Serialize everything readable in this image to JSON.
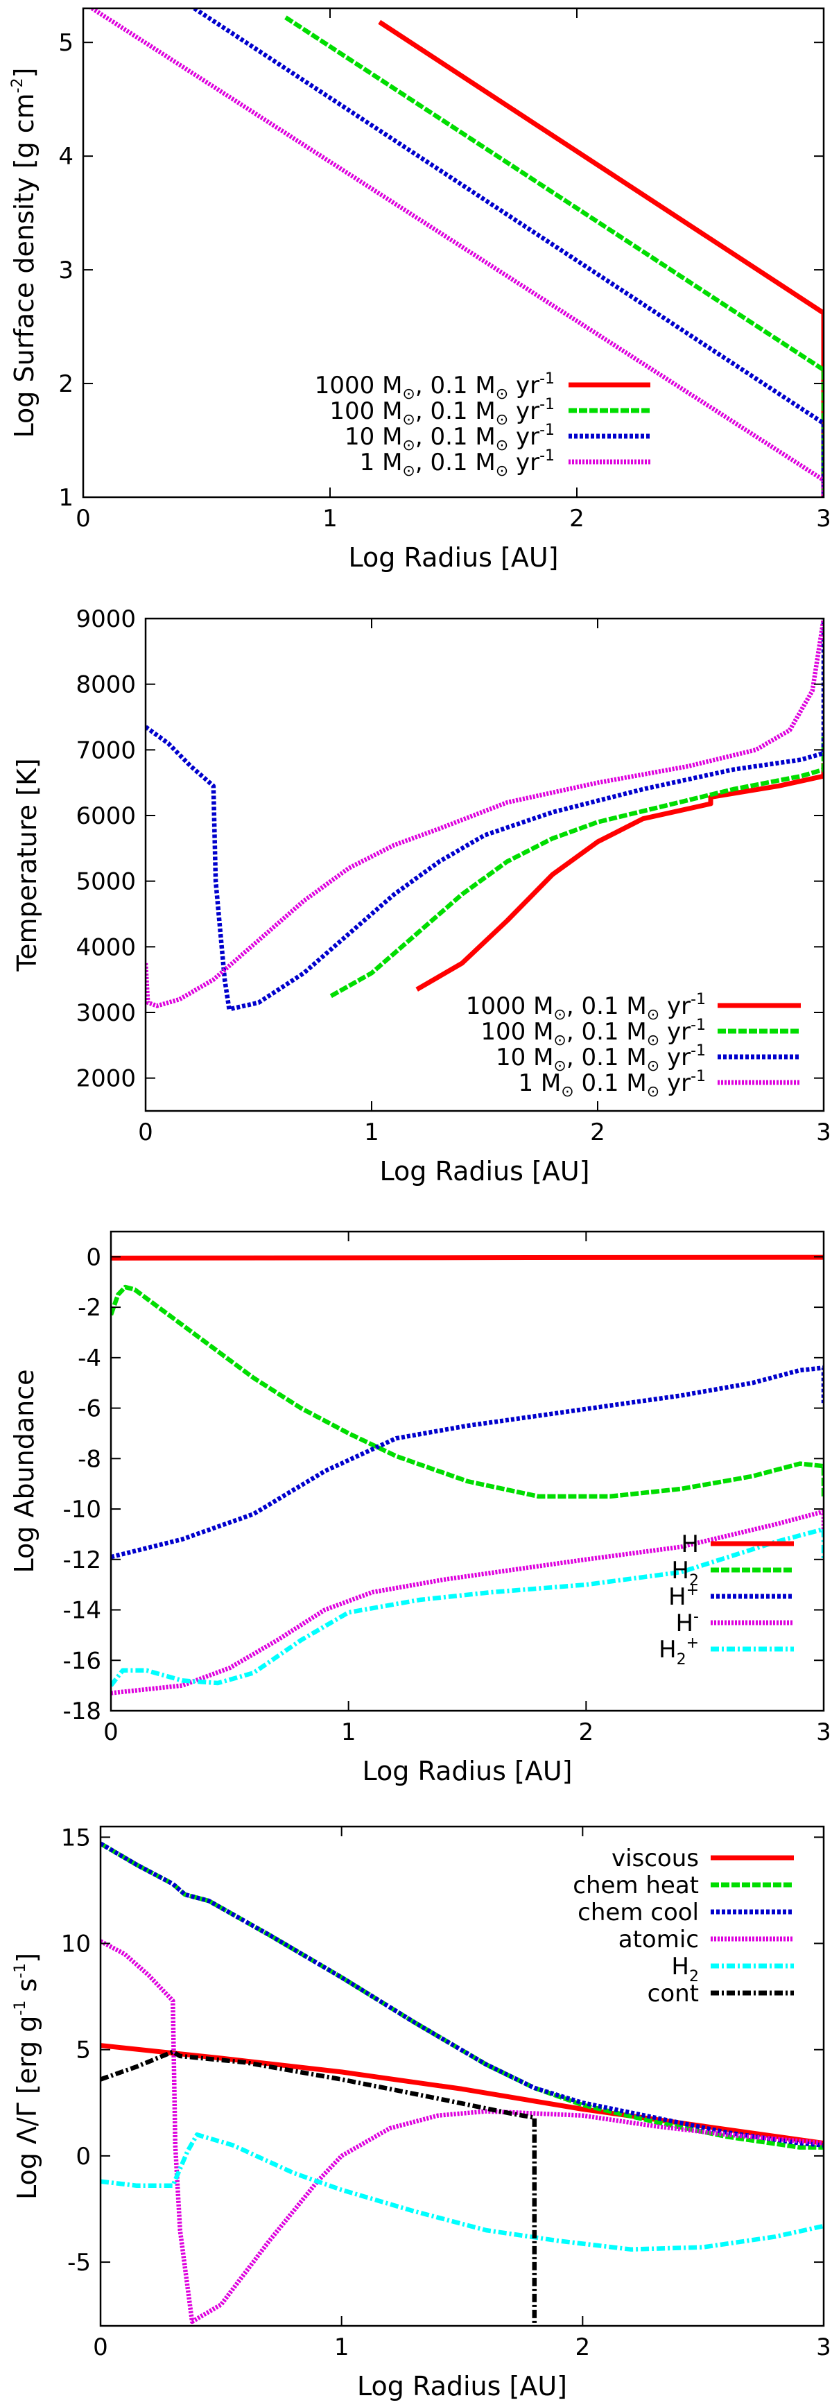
{
  "chart_data": [
    {
      "type": "line",
      "xlabel": "Log Radius [AU]",
      "ylabel": "Log Surface density [g cm⁻²]",
      "ylabel_parts": {
        "main": "Log Surface density [g cm",
        "sup": "-2",
        "tail": "]"
      },
      "xlim": [
        0,
        3
      ],
      "ylim": [
        1,
        5.3
      ],
      "xticks": [
        0,
        1,
        2,
        3
      ],
      "yticks": [
        1,
        2,
        3,
        4,
        5
      ],
      "legend_position": "bottom-left",
      "series": [
        {
          "name": "1000 M⊙, 0.1 M⊙ yr⁻¹",
          "label": {
            "m": "1000",
            "sep": ",",
            "rate": "0.1"
          },
          "color": "#ff0000",
          "dash": "solid",
          "x": [
            1.2,
            3.0,
            3.0
          ],
          "y": [
            5.18,
            2.62,
            1.0
          ]
        },
        {
          "name": "100 M⊙, 0.1 M⊙ yr⁻¹",
          "label": {
            "m": "100",
            "sep": ",",
            "rate": "0.1"
          },
          "color": "#00dd00",
          "dash": "dash",
          "x": [
            0.82,
            3.0,
            3.0
          ],
          "y": [
            5.22,
            2.12,
            1.0
          ]
        },
        {
          "name": "10 M⊙, 0.1 M⊙ yr⁻¹",
          "label": {
            "m": "10",
            "sep": ",",
            "rate": "0.1"
          },
          "color": "#0000cc",
          "dash": "dot",
          "x": [
            0.45,
            3.0,
            3.0
          ],
          "y": [
            5.3,
            1.65,
            1.0
          ]
        },
        {
          "name": "1 M⊙, 0.1 M⊙ yr⁻¹",
          "label": {
            "m": "1",
            "sep": ",",
            "rate": "0.1"
          },
          "color": "#dd00dd",
          "dash": "dense",
          "x": [
            0.0,
            3.0,
            3.0
          ],
          "y": [
            5.35,
            1.15,
            1.0
          ]
        }
      ]
    },
    {
      "type": "line",
      "xlabel": "Log Radius [AU]",
      "ylabel": "Temperature [K]",
      "xlim": [
        0,
        3
      ],
      "ylim": [
        1500,
        9000
      ],
      "xticks": [
        0,
        1,
        2,
        3
      ],
      "yticks": [
        2000,
        3000,
        4000,
        5000,
        6000,
        7000,
        8000,
        9000
      ],
      "legend_position": "bottom-right",
      "series": [
        {
          "name": "1000 M⊙, 0.1 M⊙ yr⁻¹",
          "label": {
            "m": "1000",
            "sep": ",",
            "rate": "0.1"
          },
          "color": "#ff0000",
          "dash": "solid",
          "x": [
            1.2,
            1.4,
            1.6,
            1.8,
            2.0,
            2.2,
            2.5,
            2.5,
            2.8,
            3.0,
            3.0
          ],
          "y": [
            3350,
            3750,
            4400,
            5100,
            5600,
            5950,
            6180,
            6280,
            6450,
            6600,
            6800
          ]
        },
        {
          "name": "100 M⊙, 0.1 M⊙ yr⁻¹",
          "label": {
            "m": "100",
            "sep": ",",
            "rate": "0.1"
          },
          "color": "#00dd00",
          "dash": "dash",
          "x": [
            0.82,
            1.0,
            1.2,
            1.4,
            1.6,
            1.8,
            2.0,
            2.3,
            2.6,
            2.9,
            3.0,
            3.0
          ],
          "y": [
            3250,
            3600,
            4200,
            4800,
            5300,
            5650,
            5900,
            6150,
            6400,
            6600,
            6700,
            7200
          ]
        },
        {
          "name": "10 M⊙, 0.1 M⊙ yr⁻¹",
          "label": {
            "m": "10",
            "sep": ",",
            "rate": "0.1"
          },
          "color": "#0000cc",
          "dash": "dot",
          "x": [
            0.0,
            0.1,
            0.2,
            0.3,
            0.31,
            0.35,
            0.37,
            0.5,
            0.7,
            0.9,
            1.1,
            1.3,
            1.5,
            1.8,
            2.2,
            2.6,
            2.9,
            3.0,
            3.0
          ],
          "y": [
            7350,
            7100,
            6750,
            6450,
            5000,
            3500,
            3050,
            3150,
            3600,
            4200,
            4800,
            5300,
            5700,
            6050,
            6400,
            6700,
            6850,
            6950,
            9000
          ]
        },
        {
          "name": "1 M⊙, 0.1 M⊙ yr⁻¹",
          "label": {
            "m": "1",
            "sep": "",
            "rate": "0.1"
          },
          "color": "#dd00dd",
          "dash": "dense",
          "x": [
            0.0,
            0.01,
            0.05,
            0.15,
            0.3,
            0.5,
            0.7,
            0.9,
            1.1,
            1.3,
            1.6,
            2.0,
            2.4,
            2.7,
            2.85,
            2.95,
            3.0
          ],
          "y": [
            3750,
            3150,
            3100,
            3200,
            3500,
            4100,
            4700,
            5200,
            5550,
            5800,
            6200,
            6500,
            6750,
            7000,
            7300,
            7900,
            9000
          ]
        }
      ]
    },
    {
      "type": "line",
      "xlabel": "Log Radius [AU]",
      "ylabel": "Log Abundance",
      "xlim": [
        0,
        3
      ],
      "ylim": [
        -18,
        1
      ],
      "xticks": [
        0,
        1,
        2,
        3
      ],
      "yticks": [
        0,
        -2,
        -4,
        -6,
        -8,
        -10,
        -12,
        -14,
        -16,
        -18
      ],
      "legend_position": "bottom-right",
      "series": [
        {
          "name": "H",
          "label": {
            "base": "H",
            "sub": "",
            "sup": ""
          },
          "color": "#ff0000",
          "dash": "solid",
          "x": [
            0.0,
            3.0
          ],
          "y": [
            -0.05,
            -0.02
          ]
        },
        {
          "name": "H₂",
          "label": {
            "base": "H",
            "sub": "2",
            "sup": ""
          },
          "color": "#00dd00",
          "dash": "dash",
          "x": [
            0.0,
            0.03,
            0.06,
            0.1,
            0.2,
            0.4,
            0.6,
            0.8,
            1.0,
            1.2,
            1.5,
            1.8,
            2.1,
            2.4,
            2.7,
            2.9,
            3.0,
            3.0
          ],
          "y": [
            -2.3,
            -1.5,
            -1.2,
            -1.3,
            -2.0,
            -3.4,
            -4.8,
            -6.0,
            -7.0,
            -7.9,
            -8.9,
            -9.5,
            -9.5,
            -9.2,
            -8.7,
            -8.2,
            -8.3,
            -9.5
          ]
        },
        {
          "name": "H⁺",
          "label": {
            "base": "H",
            "sub": "",
            "sup": "+"
          },
          "color": "#0000cc",
          "dash": "dot",
          "x": [
            0.0,
            0.3,
            0.6,
            0.9,
            1.2,
            1.5,
            1.8,
            2.1,
            2.4,
            2.7,
            2.9,
            3.0,
            3.0
          ],
          "y": [
            -11.9,
            -11.2,
            -10.2,
            -8.5,
            -7.2,
            -6.7,
            -6.3,
            -5.9,
            -5.5,
            -5.0,
            -4.5,
            -4.4,
            -5.8
          ]
        },
        {
          "name": "H⁻",
          "label": {
            "base": "H",
            "sub": "",
            "sup": "-"
          },
          "color": "#dd00dd",
          "dash": "dense",
          "x": [
            0.0,
            0.3,
            0.5,
            0.7,
            0.9,
            1.1,
            1.4,
            1.7,
            2.0,
            2.4,
            2.8,
            3.0,
            3.0
          ],
          "y": [
            -17.3,
            -17.0,
            -16.3,
            -15.2,
            -14.0,
            -13.3,
            -12.8,
            -12.4,
            -12.0,
            -11.5,
            -10.6,
            -10.1,
            -11.0
          ]
        },
        {
          "name": "H₂⁺",
          "label": {
            "base": "H",
            "sub": "2",
            "sup": "+"
          },
          "color": "#00ffff",
          "dash": "dashdot",
          "x": [
            0.0,
            0.05,
            0.15,
            0.3,
            0.45,
            0.6,
            0.8,
            1.0,
            1.3,
            1.6,
            2.0,
            2.4,
            2.8,
            3.0,
            3.0
          ],
          "y": [
            -17.0,
            -16.4,
            -16.4,
            -16.8,
            -16.9,
            -16.5,
            -15.2,
            -14.1,
            -13.6,
            -13.3,
            -13.0,
            -12.5,
            -11.3,
            -10.8,
            -12.0
          ]
        }
      ]
    },
    {
      "type": "line",
      "xlabel": "Log Radius [AU]",
      "ylabel": "Log Λ/Γ [erg g⁻¹ s⁻¹]",
      "ylabel_parts": {
        "main": "Log Λ/Γ [erg g",
        "sup1": "-1",
        "mid": " s",
        "sup2": "-1",
        "tail": "]"
      },
      "xlim": [
        0,
        3
      ],
      "ylim": [
        -8,
        15.5
      ],
      "xticks": [
        0,
        1,
        2,
        3
      ],
      "yticks": [
        15,
        10,
        5,
        0,
        -5
      ],
      "legend_position": "top-right",
      "series": [
        {
          "name": "viscous",
          "color": "#ff0000",
          "dash": "solid",
          "x": [
            0.0,
            0.5,
            1.0,
            1.5,
            2.0,
            2.5,
            3.0
          ],
          "y": [
            5.2,
            4.6,
            3.95,
            3.15,
            2.2,
            1.4,
            0.6
          ]
        },
        {
          "name": "chem heat",
          "color": "#00dd00",
          "dash": "dash",
          "x": [
            0.0,
            0.15,
            0.3,
            0.35,
            0.45,
            0.7,
            1.0,
            1.3,
            1.6,
            1.8,
            2.0,
            2.3,
            2.6,
            2.9,
            3.0
          ],
          "y": [
            14.7,
            13.7,
            12.8,
            12.3,
            12.0,
            10.4,
            8.4,
            6.3,
            4.3,
            3.2,
            2.4,
            1.6,
            0.9,
            0.4,
            0.4
          ]
        },
        {
          "name": "chem cool",
          "color": "#0000cc",
          "dash": "dot",
          "x": [
            0.0,
            0.15,
            0.3,
            0.35,
            0.45,
            0.7,
            1.0,
            1.3,
            1.6,
            1.8,
            2.0,
            2.3,
            2.6,
            2.9,
            3.0
          ],
          "y": [
            14.7,
            13.7,
            12.8,
            12.3,
            12.0,
            10.4,
            8.4,
            6.3,
            4.3,
            3.2,
            2.5,
            1.8,
            1.1,
            0.6,
            0.5
          ]
        },
        {
          "name": "atomic",
          "color": "#dd00dd",
          "dash": "dense",
          "x": [
            0.0,
            0.1,
            0.2,
            0.3,
            0.31,
            0.33,
            0.38,
            0.5,
            0.7,
            0.9,
            1.0,
            1.2,
            1.4,
            1.6,
            1.8,
            2.0,
            2.3,
            2.6,
            3.0
          ],
          "y": [
            10.1,
            9.5,
            8.5,
            7.3,
            0.5,
            -3.5,
            -7.8,
            -7.0,
            -4.0,
            -1.2,
            0.0,
            1.3,
            1.9,
            2.1,
            2.0,
            1.9,
            1.4,
            1.0,
            0.6
          ]
        },
        {
          "name": "H₂",
          "label": {
            "base": "H",
            "sub": "2"
          },
          "color": "#00ffff",
          "dash": "dashdot",
          "x": [
            0.0,
            0.15,
            0.3,
            0.36,
            0.4,
            0.55,
            0.8,
            1.0,
            1.3,
            1.6,
            1.9,
            2.2,
            2.5,
            2.8,
            3.0
          ],
          "y": [
            -1.2,
            -1.4,
            -1.4,
            0.2,
            1.0,
            0.5,
            -0.8,
            -1.6,
            -2.6,
            -3.5,
            -4.0,
            -4.4,
            -4.3,
            -3.8,
            -3.3
          ]
        },
        {
          "name": "cont",
          "color": "#000000",
          "dash": "dashdot",
          "x": [
            0.0,
            0.15,
            0.3,
            0.33,
            0.6,
            1.0,
            1.4,
            1.7,
            1.8,
            1.8
          ],
          "y": [
            3.6,
            4.2,
            4.9,
            4.7,
            4.4,
            3.6,
            2.7,
            2.0,
            1.8,
            -8.0
          ]
        }
      ]
    }
  ]
}
